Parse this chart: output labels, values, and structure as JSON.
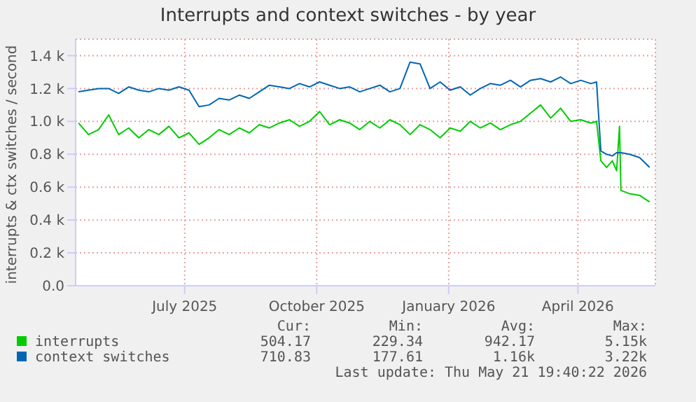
{
  "chart_data": {
    "type": "line",
    "title": "Interrupts and context switches - by year",
    "ylabel": "interrupts & ctx switches / second",
    "x": [
      "2025-04-18",
      "2025-04-25",
      "2025-05-02",
      "2025-05-09",
      "2025-05-16",
      "2025-05-23",
      "2025-05-30",
      "2025-06-06",
      "2025-06-13",
      "2025-06-20",
      "2025-06-27",
      "2025-07-04",
      "2025-07-11",
      "2025-07-18",
      "2025-07-25",
      "2025-08-01",
      "2025-08-08",
      "2025-08-15",
      "2025-08-22",
      "2025-08-29",
      "2025-09-05",
      "2025-09-12",
      "2025-09-19",
      "2025-09-26",
      "2025-10-03",
      "2025-10-10",
      "2025-10-17",
      "2025-10-24",
      "2025-10-31",
      "2025-11-07",
      "2025-11-14",
      "2025-11-21",
      "2025-11-28",
      "2025-12-05",
      "2025-12-12",
      "2025-12-19",
      "2025-12-26",
      "2026-01-02",
      "2026-01-09",
      "2026-01-16",
      "2026-01-23",
      "2026-01-30",
      "2026-02-06",
      "2026-02-13",
      "2026-02-20",
      "2026-02-27",
      "2026-03-06",
      "2026-03-13",
      "2026-03-20",
      "2026-03-27",
      "2026-04-03",
      "2026-04-10",
      "2026-04-14",
      "2026-04-17",
      "2026-04-21",
      "2026-04-25",
      "2026-04-28",
      "2026-04-30",
      "2026-05-01",
      "2026-05-07",
      "2026-05-14",
      "2026-05-21"
    ],
    "series": [
      {
        "name": "interrupts",
        "color": "#00cc00",
        "values": [
          990,
          920,
          950,
          1040,
          920,
          960,
          900,
          950,
          920,
          970,
          900,
          930,
          860,
          900,
          950,
          920,
          960,
          930,
          980,
          960,
          990,
          1010,
          970,
          1000,
          1060,
          980,
          1010,
          990,
          950,
          1000,
          960,
          1010,
          980,
          920,
          980,
          950,
          900,
          960,
          940,
          1000,
          960,
          990,
          950,
          980,
          1000,
          1050,
          1100,
          1020,
          1080,
          1000,
          1010,
          990,
          1000,
          760,
          720,
          760,
          700,
          970,
          580,
          560,
          550,
          510
        ]
      },
      {
        "name": "context switches",
        "color": "#0066b3",
        "values": [
          1180,
          1190,
          1200,
          1200,
          1170,
          1210,
          1190,
          1180,
          1200,
          1190,
          1210,
          1190,
          1090,
          1100,
          1140,
          1130,
          1160,
          1140,
          1180,
          1220,
          1210,
          1200,
          1230,
          1210,
          1240,
          1220,
          1200,
          1210,
          1180,
          1200,
          1220,
          1180,
          1200,
          1360,
          1350,
          1200,
          1240,
          1190,
          1210,
          1160,
          1200,
          1230,
          1220,
          1250,
          1210,
          1250,
          1260,
          1240,
          1270,
          1230,
          1250,
          1230,
          1240,
          820,
          800,
          790,
          810,
          810,
          810,
          800,
          780,
          720
        ]
      }
    ],
    "xlim": [
      "2025-04-16",
      "2026-05-25"
    ],
    "xticks": [
      {
        "value": "2025-07-01",
        "label": "July 2025"
      },
      {
        "value": "2025-10-01",
        "label": "October 2025"
      },
      {
        "value": "2026-01-01",
        "label": "January 2026"
      },
      {
        "value": "2026-04-01",
        "label": "April 2026"
      }
    ],
    "ylim": [
      0,
      1500
    ],
    "yticks": [
      {
        "value": 0,
        "label": "0.0"
      },
      {
        "value": 200,
        "label": "0.2 k"
      },
      {
        "value": 400,
        "label": "0.4 k"
      },
      {
        "value": 600,
        "label": "0.6 k"
      },
      {
        "value": 800,
        "label": "0.8 k"
      },
      {
        "value": 1000,
        "label": "1.0 k"
      },
      {
        "value": 1200,
        "label": "1.2 k"
      },
      {
        "value": 1400,
        "label": "1.4 k"
      }
    ],
    "grid": true,
    "legend": "bottom",
    "marker": "none",
    "line_style": "solid",
    "annotations": [
      "Cur:",
      "Min:",
      "Avg:",
      "Max:",
      "504.17",
      "229.34",
      "942.17",
      "5.15k",
      "710.83",
      "177.61",
      "1.16k",
      "3.22k",
      "Last update: Thu May 21 19:40:22 2026"
    ]
  }
}
